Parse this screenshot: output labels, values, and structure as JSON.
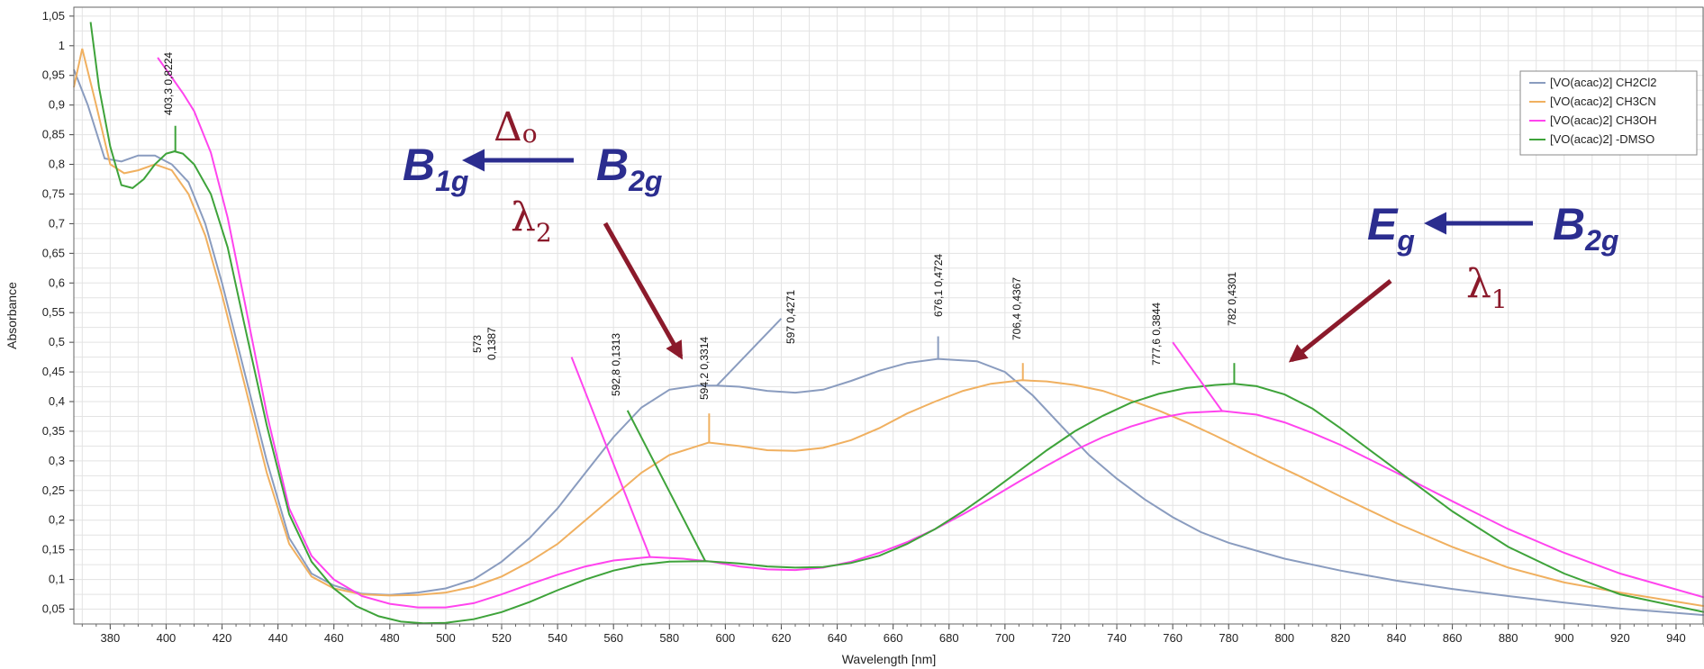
{
  "chart_data": {
    "type": "line",
    "title": "",
    "xlabel": "Wavelength [nm]",
    "ylabel": "Absorbance",
    "xlim": [
      367,
      950
    ],
    "ylim": [
      0.025,
      1.065
    ],
    "xticks": [
      380,
      400,
      420,
      440,
      460,
      480,
      500,
      520,
      540,
      560,
      580,
      600,
      620,
      640,
      660,
      680,
      700,
      720,
      740,
      760,
      780,
      800,
      820,
      840,
      860,
      880,
      900,
      920,
      940
    ],
    "yticks": [
      0.05,
      0.1,
      0.15,
      0.2,
      0.25,
      0.3,
      0.35,
      0.4,
      0.45,
      0.5,
      0.55,
      0.6,
      0.65,
      0.7,
      0.75,
      0.8,
      0.85,
      0.9,
      0.95,
      1,
      1.05
    ],
    "ytick_labels": [
      "0,05",
      "0,1",
      "0,15",
      "0,2",
      "0,25",
      "0,3",
      "0,35",
      "0,4",
      "0,45",
      "0,5",
      "0,55",
      "0,6",
      "0,65",
      "0,7",
      "0,75",
      "0,8",
      "0,85",
      "0,9",
      "0,95",
      "1",
      "1,05"
    ],
    "grid": true,
    "legend_position": "top-right",
    "series": [
      {
        "name": "[VO(acac)2] CH2Cl2",
        "color": "#8a9cbf",
        "x": [
          367,
          372,
          378,
          384,
          390,
          396,
          402,
          408,
          414,
          420,
          428,
          436,
          444,
          452,
          460,
          470,
          480,
          490,
          500,
          510,
          520,
          530,
          540,
          550,
          560,
          570,
          580,
          590,
          597,
          605,
          615,
          625,
          635,
          645,
          655,
          665,
          676,
          690,
          700,
          710,
          720,
          730,
          740,
          750,
          760,
          770,
          780,
          800,
          820,
          840,
          860,
          880,
          900,
          920,
          950
        ],
        "y": [
          0.96,
          0.9,
          0.81,
          0.805,
          0.815,
          0.815,
          0.8,
          0.77,
          0.7,
          0.6,
          0.45,
          0.3,
          0.17,
          0.11,
          0.09,
          0.076,
          0.074,
          0.078,
          0.085,
          0.1,
          0.13,
          0.17,
          0.22,
          0.28,
          0.34,
          0.39,
          0.42,
          0.427,
          0.427,
          0.425,
          0.418,
          0.415,
          0.42,
          0.435,
          0.452,
          0.465,
          0.472,
          0.468,
          0.45,
          0.41,
          0.36,
          0.31,
          0.27,
          0.235,
          0.205,
          0.18,
          0.162,
          0.135,
          0.115,
          0.098,
          0.084,
          0.072,
          0.061,
          0.051,
          0.04
        ]
      },
      {
        "name": "[VO(acac)2] CH3CN",
        "color": "#f0b060",
        "x": [
          367,
          370,
          375,
          380,
          385,
          390,
          396,
          402,
          408,
          414,
          420,
          428,
          436,
          444,
          452,
          460,
          470,
          480,
          490,
          500,
          510,
          520,
          530,
          540,
          550,
          560,
          570,
          580,
          594,
          605,
          615,
          625,
          635,
          645,
          655,
          665,
          675,
          685,
          695,
          706,
          715,
          725,
          735,
          745,
          755,
          765,
          775,
          785,
          795,
          805,
          820,
          840,
          860,
          880,
          900,
          920,
          950
        ],
        "y": [
          0.93,
          0.995,
          0.9,
          0.8,
          0.785,
          0.79,
          0.8,
          0.79,
          0.75,
          0.68,
          0.58,
          0.43,
          0.28,
          0.16,
          0.105,
          0.085,
          0.075,
          0.073,
          0.074,
          0.078,
          0.088,
          0.105,
          0.13,
          0.16,
          0.2,
          0.24,
          0.28,
          0.31,
          0.331,
          0.325,
          0.318,
          0.317,
          0.322,
          0.335,
          0.355,
          0.38,
          0.4,
          0.418,
          0.43,
          0.436,
          0.434,
          0.428,
          0.418,
          0.402,
          0.385,
          0.365,
          0.343,
          0.32,
          0.297,
          0.275,
          0.24,
          0.195,
          0.155,
          0.12,
          0.095,
          0.078,
          0.055
        ]
      },
      {
        "name": "[VO(acac)2] CH3OH",
        "color": "#ff44ee",
        "x": [
          397,
          400,
          403,
          406,
          410,
          416,
          422,
          428,
          436,
          444,
          452,
          460,
          470,
          480,
          490,
          500,
          510,
          520,
          530,
          540,
          550,
          560,
          573,
          585,
          595,
          605,
          615,
          625,
          635,
          645,
          655,
          665,
          675,
          685,
          695,
          705,
          715,
          725,
          735,
          745,
          755,
          765,
          778,
          790,
          800,
          810,
          820,
          840,
          860,
          880,
          900,
          920,
          950
        ],
        "y": [
          0.98,
          0.96,
          0.94,
          0.92,
          0.89,
          0.82,
          0.71,
          0.57,
          0.38,
          0.22,
          0.14,
          0.1,
          0.072,
          0.059,
          0.053,
          0.053,
          0.06,
          0.075,
          0.092,
          0.108,
          0.122,
          0.132,
          0.138,
          0.135,
          0.13,
          0.122,
          0.117,
          0.116,
          0.12,
          0.13,
          0.145,
          0.163,
          0.185,
          0.21,
          0.237,
          0.265,
          0.292,
          0.318,
          0.34,
          0.358,
          0.372,
          0.381,
          0.384,
          0.378,
          0.365,
          0.347,
          0.327,
          0.28,
          0.232,
          0.185,
          0.145,
          0.11,
          0.07
        ]
      },
      {
        "name": "[VO(acac)2] -DMSO",
        "color": "#3ea33a",
        "x": [
          373,
          376,
          380,
          384,
          388,
          392,
          396,
          400,
          403,
          406,
          410,
          416,
          422,
          428,
          436,
          444,
          452,
          460,
          468,
          476,
          484,
          492,
          500,
          510,
          520,
          530,
          540,
          550,
          560,
          570,
          580,
          593,
          605,
          615,
          625,
          635,
          645,
          655,
          665,
          675,
          685,
          695,
          705,
          715,
          725,
          735,
          745,
          755,
          765,
          775,
          782,
          790,
          800,
          810,
          820,
          840,
          860,
          880,
          900,
          920,
          950
        ],
        "y": [
          1.04,
          0.93,
          0.83,
          0.765,
          0.76,
          0.775,
          0.8,
          0.818,
          0.822,
          0.818,
          0.8,
          0.75,
          0.66,
          0.53,
          0.36,
          0.21,
          0.13,
          0.085,
          0.055,
          0.038,
          0.029,
          0.026,
          0.027,
          0.033,
          0.045,
          0.062,
          0.082,
          0.1,
          0.115,
          0.125,
          0.13,
          0.131,
          0.127,
          0.122,
          0.12,
          0.121,
          0.128,
          0.14,
          0.16,
          0.185,
          0.215,
          0.248,
          0.283,
          0.318,
          0.35,
          0.376,
          0.398,
          0.413,
          0.423,
          0.428,
          0.43,
          0.426,
          0.412,
          0.388,
          0.355,
          0.285,
          0.215,
          0.155,
          0.11,
          0.075,
          0.045
        ]
      }
    ],
    "peak_labels": [
      {
        "text": "403,3  0,8224",
        "x": 403.3,
        "y": 0.8224,
        "series": 3
      },
      {
        "text": "573",
        "text2": "0,1387",
        "x": 573,
        "y": 0.1387,
        "series": 2
      },
      {
        "text": "592,8  0,1313",
        "x": 592.8,
        "y": 0.1313,
        "series": 3
      },
      {
        "text": "594,2  0,3314",
        "x": 594.2,
        "y": 0.3314,
        "series": 1
      },
      {
        "text": "597  0,4271",
        "x": 597,
        "y": 0.4271,
        "series": 0
      },
      {
        "text": "676,1  0,4724",
        "x": 676.1,
        "y": 0.4724,
        "series": 0
      },
      {
        "text": "706,4  0,4367",
        "x": 706.4,
        "y": 0.4367,
        "series": 1
      },
      {
        "text": "777,6  0,3844",
        "x": 777.6,
        "y": 0.3844,
        "series": 2
      },
      {
        "text": "782  0,4301",
        "x": 782,
        "y": 0.4301,
        "series": 3
      }
    ]
  },
  "annotations": {
    "transition_high": {
      "from": "B",
      "from_sub": "2g",
      "to": "B",
      "to_sub": "1g",
      "delta": "Δ",
      "delta_sub": "o",
      "lambda": "λ",
      "lambda_sub": "2"
    },
    "transition_low": {
      "from": "B",
      "from_sub": "2g",
      "to": "E",
      "to_sub": "g",
      "lambda": "λ",
      "lambda_sub": "1"
    },
    "colors": {
      "blue": "#2b2d8f",
      "red": "#8b1a2b"
    }
  }
}
